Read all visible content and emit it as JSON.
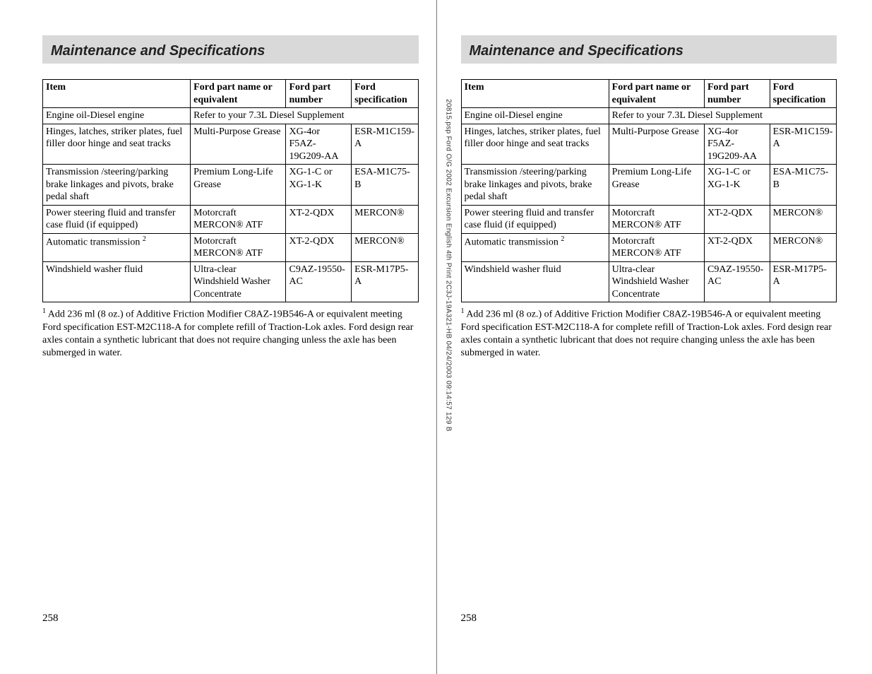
{
  "colors": {
    "page_bg": "#ffffff",
    "text": "#000000",
    "header_bg": "#d9d9d9",
    "border": "#000000",
    "spine": "#777777"
  },
  "typography": {
    "body_family": "Times New Roman",
    "header_family": "Arial",
    "header_fontsize_pt": 15,
    "body_fontsize_pt": 11,
    "footnote_fontsize_pt": 11
  },
  "gutter": "20815.psp Ford O/G 2002 Excursion English 4th Print 2C3J-19A321-HB  04/24/2003 09:14:57 129 B",
  "page_number": "258",
  "header": {
    "title": "Maintenance and Specifications"
  },
  "table": {
    "columns": [
      "Item",
      "Ford part name or equivalent",
      "Ford part number",
      "Ford specification"
    ],
    "row_engine": {
      "item": "Engine oil-Diesel engine",
      "span": "Refer to your 7.3L Diesel Supplement"
    },
    "row_hinges": {
      "item": "Hinges, latches, striker plates, fuel filler door hinge and seat tracks",
      "name": "Multi-Purpose Grease",
      "number": "XG-4or F5AZ-19G209-AA",
      "spec": "ESR-M1C159-A"
    },
    "row_trans_linkage": {
      "item": "Transmission /steering/parking brake linkages and pivots, brake pedal shaft",
      "name": "Premium Long-Life Grease",
      "number": "XG-1-C or XG-1-K",
      "spec": "ESA-M1C75-B"
    },
    "row_power_steer": {
      "item": "Power steering fluid and transfer case fluid (if equipped)",
      "name": "Motorcraft MERCON® ATF",
      "number": "XT-2-QDX",
      "spec": "MERCON®"
    },
    "row_auto_trans": {
      "item_pre": "Automatic transmission",
      "item_sup": "2",
      "name": "Motorcraft MERCON® ATF",
      "number": "XT-2-QDX",
      "spec": "MERCON®"
    },
    "row_washer": {
      "item": "Windshield washer fluid",
      "name": "Ultra-clear Windshield Washer Concentrate",
      "number": "C9AZ-19550-AC",
      "spec": "ESR-M17P5-A"
    }
  },
  "footnote": {
    "sup": "1",
    "text": " Add 236 ml (8 oz.) of Additive Friction Modifier C8AZ-19B546-A or equivalent meeting Ford specification EST-M2C118-A for complete refill of Traction-Lok axles. Ford design rear axles contain a synthetic lubricant that does not require changing unless the axle has been submerged in water."
  }
}
